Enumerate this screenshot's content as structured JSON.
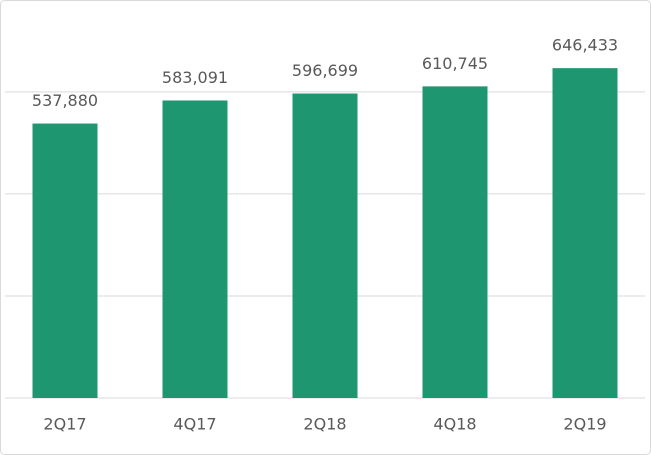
{
  "chart_data": {
    "type": "bar",
    "categories": [
      "2Q17",
      "4Q17",
      "2Q18",
      "4Q18",
      "2Q19"
    ],
    "values": [
      537880,
      583091,
      596699,
      610745,
      646433
    ],
    "value_labels": [
      "537,880",
      "583,091",
      "596,699",
      "610,745",
      "646,433"
    ],
    "color": "#1e9670",
    "ylim": [
      0,
      780000
    ],
    "yticks": [
      0,
      200000,
      400000,
      600000
    ],
    "grid": true
  }
}
